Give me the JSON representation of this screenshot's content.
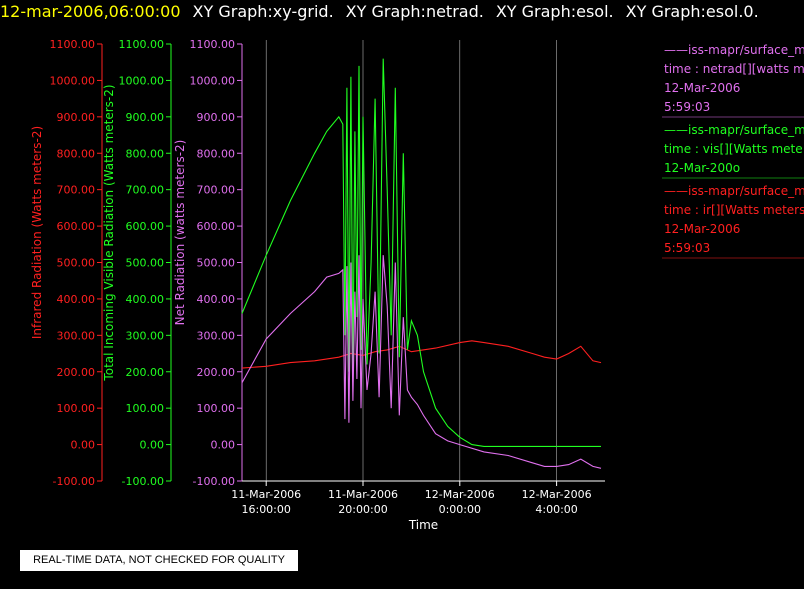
{
  "header": {
    "timestamp": "12-mar-2006,06:00:00",
    "graph_titles": [
      "XY Graph:xy-grid.",
      "XY Graph:netrad.",
      "XY Graph:esol.",
      "XY Graph:esol.0."
    ]
  },
  "notice": "REAL-TIME DATA, NOT CHECKED FOR QUALITY",
  "colors": {
    "ir": "#ff2020",
    "vis": "#20ff20",
    "net": "#e070ee",
    "grid": "#ffffff"
  },
  "chart_data": {
    "type": "line",
    "xlabel": "Time",
    "x_ticks": [
      {
        "x": "2006-03-11T16:00",
        "line1": "11-Mar-2006",
        "line2": "16:00:00"
      },
      {
        "x": "2006-03-11T20:00",
        "line1": "11-Mar-2006",
        "line2": "20:00:00"
      },
      {
        "x": "2006-03-12T00:00",
        "line1": "12-Mar-2006",
        "line2": "0:00:00"
      },
      {
        "x": "2006-03-12T04:00",
        "line1": "12-Mar-2006",
        "line2": "4:00:00"
      }
    ],
    "xlim": [
      "2006-03-11T15:00",
      "2006-03-12T06:00"
    ],
    "ylim": [
      -100,
      1100
    ],
    "y_ticks_ir": [
      "-100.00",
      "0.00",
      "100.00",
      "200.00",
      "300.00",
      "400.00",
      "500.00",
      "600.00",
      "700.00",
      "800.00",
      "900.00",
      "1000.00",
      "1100.00"
    ],
    "y_ticks_vis": [
      "-100.00",
      "0.00",
      "100.00",
      "200.00",
      "300.00",
      "400.00",
      "500.00",
      "600.00",
      "700.00",
      "800.00",
      "900.00",
      "1000.00",
      "1100.00"
    ],
    "y_ticks_net": [
      "-100.00",
      "0.00",
      "100.00",
      "200.00",
      "300.00",
      "400.00",
      "500.00",
      "600.00",
      "700.00",
      "800.00",
      "900.00",
      "1000.00",
      "1100.00"
    ],
    "axis_labels": {
      "ir": "Infrared Radiation (Watts meters-2)",
      "vis": "Total Incoming Visible Radiation (Watts meters-2)",
      "net": "Net Radiation (watts meters-2)"
    },
    "series": [
      {
        "key": "ir",
        "x": [
          "2006-03-11T15:00",
          "2006-03-11T16:00",
          "2006-03-11T17:00",
          "2006-03-11T18:00",
          "2006-03-11T19:00",
          "2006-03-11T19:30",
          "2006-03-11T20:00",
          "2006-03-11T20:30",
          "2006-03-11T21:00",
          "2006-03-11T21:30",
          "2006-03-11T22:00",
          "2006-03-11T23:00",
          "2006-03-12T00:00",
          "2006-03-12T00:30",
          "2006-03-12T01:00",
          "2006-03-12T02:00",
          "2006-03-12T03:00",
          "2006-03-12T03:30",
          "2006-03-12T04:00",
          "2006-03-12T04:30",
          "2006-03-12T05:00",
          "2006-03-12T05:30",
          "2006-03-12T05:50"
        ],
        "y": [
          210,
          215,
          225,
          230,
          240,
          250,
          245,
          255,
          260,
          270,
          255,
          265,
          280,
          285,
          280,
          270,
          250,
          240,
          235,
          250,
          270,
          230,
          225
        ]
      },
      {
        "key": "vis",
        "x": [
          "2006-03-11T15:00",
          "2006-03-11T16:00",
          "2006-03-11T17:00",
          "2006-03-11T18:00",
          "2006-03-11T18:30",
          "2006-03-11T19:00",
          "2006-03-11T19:10",
          "2006-03-11T19:15",
          "2006-03-11T19:20",
          "2006-03-11T19:25",
          "2006-03-11T19:30",
          "2006-03-11T19:35",
          "2006-03-11T19:40",
          "2006-03-11T19:45",
          "2006-03-11T19:50",
          "2006-03-11T19:55",
          "2006-03-11T20:00",
          "2006-03-11T20:10",
          "2006-03-11T20:20",
          "2006-03-11T20:30",
          "2006-03-11T20:40",
          "2006-03-11T20:50",
          "2006-03-11T21:00",
          "2006-03-11T21:10",
          "2006-03-11T21:20",
          "2006-03-11T21:30",
          "2006-03-11T21:40",
          "2006-03-11T21:50",
          "2006-03-11T22:00",
          "2006-03-11T22:15",
          "2006-03-11T22:30",
          "2006-03-11T23:00",
          "2006-03-11T23:30",
          "2006-03-12T00:00",
          "2006-03-12T00:30",
          "2006-03-12T01:00",
          "2006-03-12T01:30",
          "2006-03-12T02:00",
          "2006-03-12T03:00",
          "2006-03-12T04:00",
          "2006-03-12T05:00",
          "2006-03-12T05:50"
        ],
        "y": [
          360,
          520,
          670,
          800,
          860,
          900,
          880,
          300,
          980,
          200,
          1010,
          180,
          860,
          350,
          1040,
          260,
          900,
          220,
          500,
          950,
          250,
          1060,
          700,
          300,
          980,
          240,
          800,
          260,
          340,
          300,
          200,
          100,
          50,
          20,
          0,
          -5,
          -5,
          -5,
          -5,
          -5,
          -5,
          -5
        ]
      },
      {
        "key": "net",
        "x": [
          "2006-03-11T15:00",
          "2006-03-11T16:00",
          "2006-03-11T17:00",
          "2006-03-11T18:00",
          "2006-03-11T18:30",
          "2006-03-11T19:00",
          "2006-03-11T19:10",
          "2006-03-11T19:15",
          "2006-03-11T19:20",
          "2006-03-11T19:25",
          "2006-03-11T19:30",
          "2006-03-11T19:35",
          "2006-03-11T19:40",
          "2006-03-11T19:45",
          "2006-03-11T19:50",
          "2006-03-11T19:55",
          "2006-03-11T20:00",
          "2006-03-11T20:10",
          "2006-03-11T20:20",
          "2006-03-11T20:30",
          "2006-03-11T20:40",
          "2006-03-11T20:50",
          "2006-03-11T21:00",
          "2006-03-11T21:10",
          "2006-03-11T21:20",
          "2006-03-11T21:30",
          "2006-03-11T21:40",
          "2006-03-11T21:50",
          "2006-03-11T22:00",
          "2006-03-11T22:15",
          "2006-03-11T22:30",
          "2006-03-11T23:00",
          "2006-03-11T23:30",
          "2006-03-12T00:00",
          "2006-03-12T01:00",
          "2006-03-12T02:00",
          "2006-03-12T03:00",
          "2006-03-12T03:30",
          "2006-03-12T04:00",
          "2006-03-12T04:30",
          "2006-03-12T05:00",
          "2006-03-12T05:30",
          "2006-03-12T05:50"
        ],
        "y": [
          170,
          290,
          360,
          420,
          460,
          470,
          480,
          70,
          490,
          60,
          500,
          120,
          420,
          180,
          520,
          100,
          400,
          150,
          250,
          420,
          130,
          520,
          380,
          100,
          500,
          80,
          350,
          150,
          130,
          110,
          80,
          30,
          10,
          0,
          -20,
          -30,
          -50,
          -60,
          -60,
          -55,
          -40,
          -60,
          -65
        ]
      }
    ]
  },
  "legend": [
    {
      "key": "net",
      "lines": [
        "——iss-mapr/surface_m",
        "time : netrad[][watts me",
        "12-Mar-2006",
        "5:59:03"
      ]
    },
    {
      "key": "vis",
      "lines": [
        "——iss-mapr/surface_m",
        "time : vis[][Watts mete",
        "12-Mar-200o"
      ]
    },
    {
      "key": "ir",
      "lines": [
        "——iss-mapr/surface_m",
        "time : ir[][Watts meters",
        "12-Mar-2006",
        "5:59:03"
      ]
    }
  ]
}
